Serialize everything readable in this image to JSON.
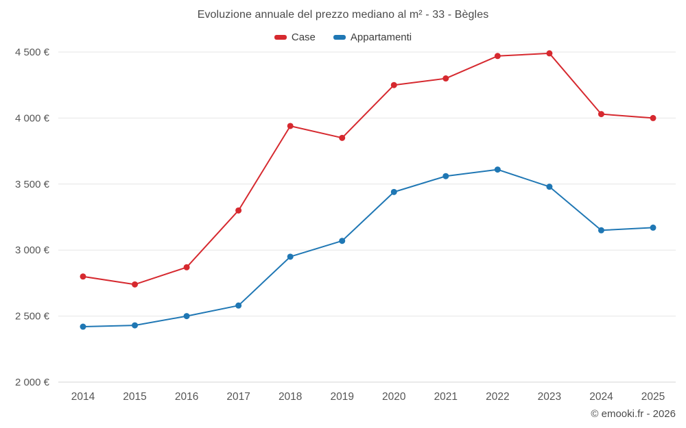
{
  "title": "Evoluzione annuale del prezzo mediano al m² - 33 - Bègles",
  "footer": "© emooki.fr - 2026",
  "colors": {
    "case": "#d6292f",
    "appartamenti": "#1f77b4",
    "grid": "#e6e6e6",
    "axis_text": "#555555"
  },
  "chart_data": {
    "type": "line",
    "categories": [
      "2014",
      "2015",
      "2016",
      "2017",
      "2018",
      "2019",
      "2020",
      "2021",
      "2022",
      "2023",
      "2024",
      "2025"
    ],
    "series": [
      {
        "name": "Case",
        "color": "#d6292f",
        "values": [
          2800,
          2740,
          2870,
          3300,
          3940,
          3850,
          4250,
          4300,
          4470,
          4490,
          4030,
          4000
        ]
      },
      {
        "name": "Appartamenti",
        "color": "#1f77b4",
        "values": [
          2420,
          2430,
          2500,
          2580,
          2950,
          3070,
          3440,
          3560,
          3610,
          3480,
          3150,
          3170
        ]
      }
    ],
    "title": "Evoluzione annuale del prezzo mediano al m² - 33 - Bègles",
    "xlabel": "",
    "ylabel": "",
    "ylim": [
      2000,
      4500
    ],
    "ytick_step": 500,
    "ytick_suffix": " €",
    "grid": true,
    "legend_position": "top"
  }
}
